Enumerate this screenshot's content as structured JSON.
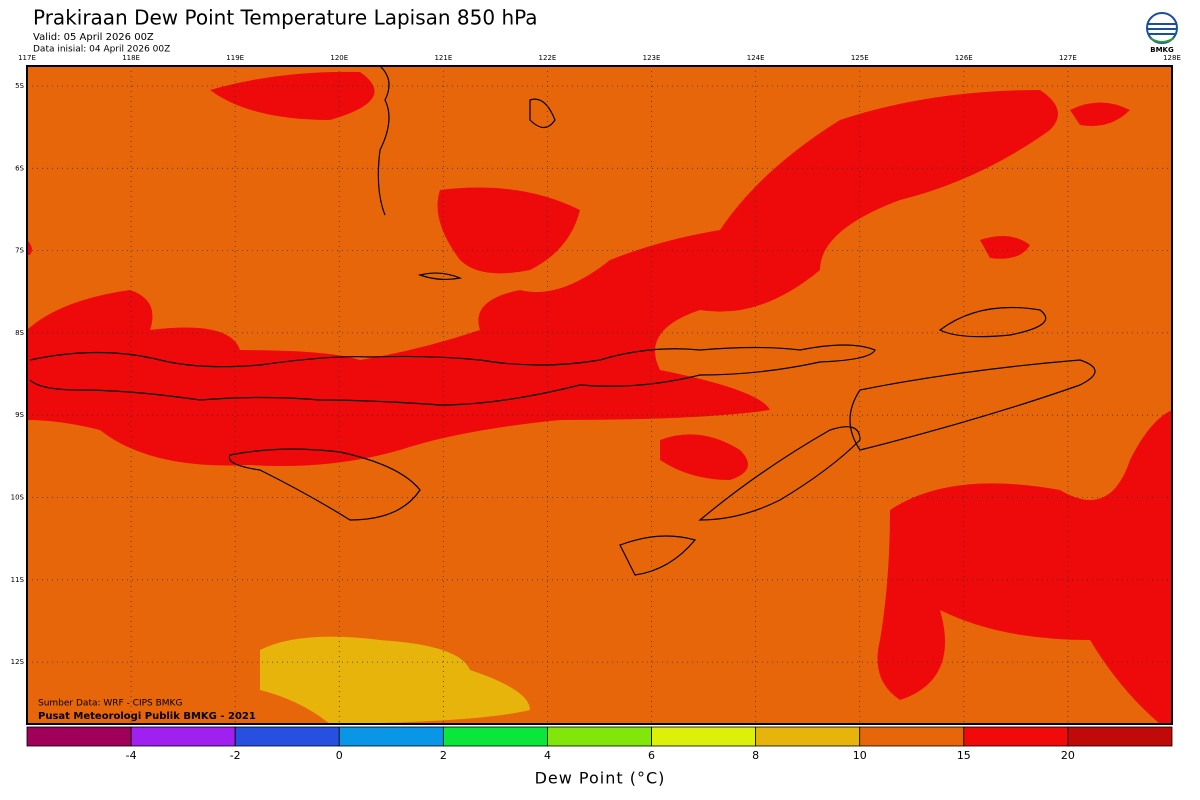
{
  "header": {
    "title": "Prakiraan Dew Point Temperature Lapisan 850 hPa",
    "valid": "Valid: 05 April 2026 00Z",
    "init": "Data inisial: 04 April 2026 00Z",
    "logo": "BMKG"
  },
  "map": {
    "longitudes": [
      "117E",
      "118E",
      "119E",
      "120E",
      "121E",
      "122E",
      "123E",
      "124E",
      "125E",
      "126E",
      "127E",
      "128E"
    ],
    "latitudes": [
      "5S",
      "6S",
      "7S",
      "8S",
      "9S",
      "10S",
      "11S",
      "12S"
    ],
    "source": "Sumber Data: WRF - CIPS BMKG",
    "credit": "Pusat Meteorologi Publik BMKG - 2021"
  },
  "colorbar": {
    "colors": [
      "#a0005a",
      "#a020f0",
      "#2850e0",
      "#0a96e6",
      "#0ae63c",
      "#82e60a",
      "#dcf00a",
      "#e6b40a",
      "#e8660a",
      "#f00a0a",
      "#c00a0a"
    ],
    "ticks": [
      -4,
      -2,
      0,
      2,
      4,
      6,
      8,
      10,
      15,
      20
    ],
    "label": "Dew Point (°C)"
  }
}
